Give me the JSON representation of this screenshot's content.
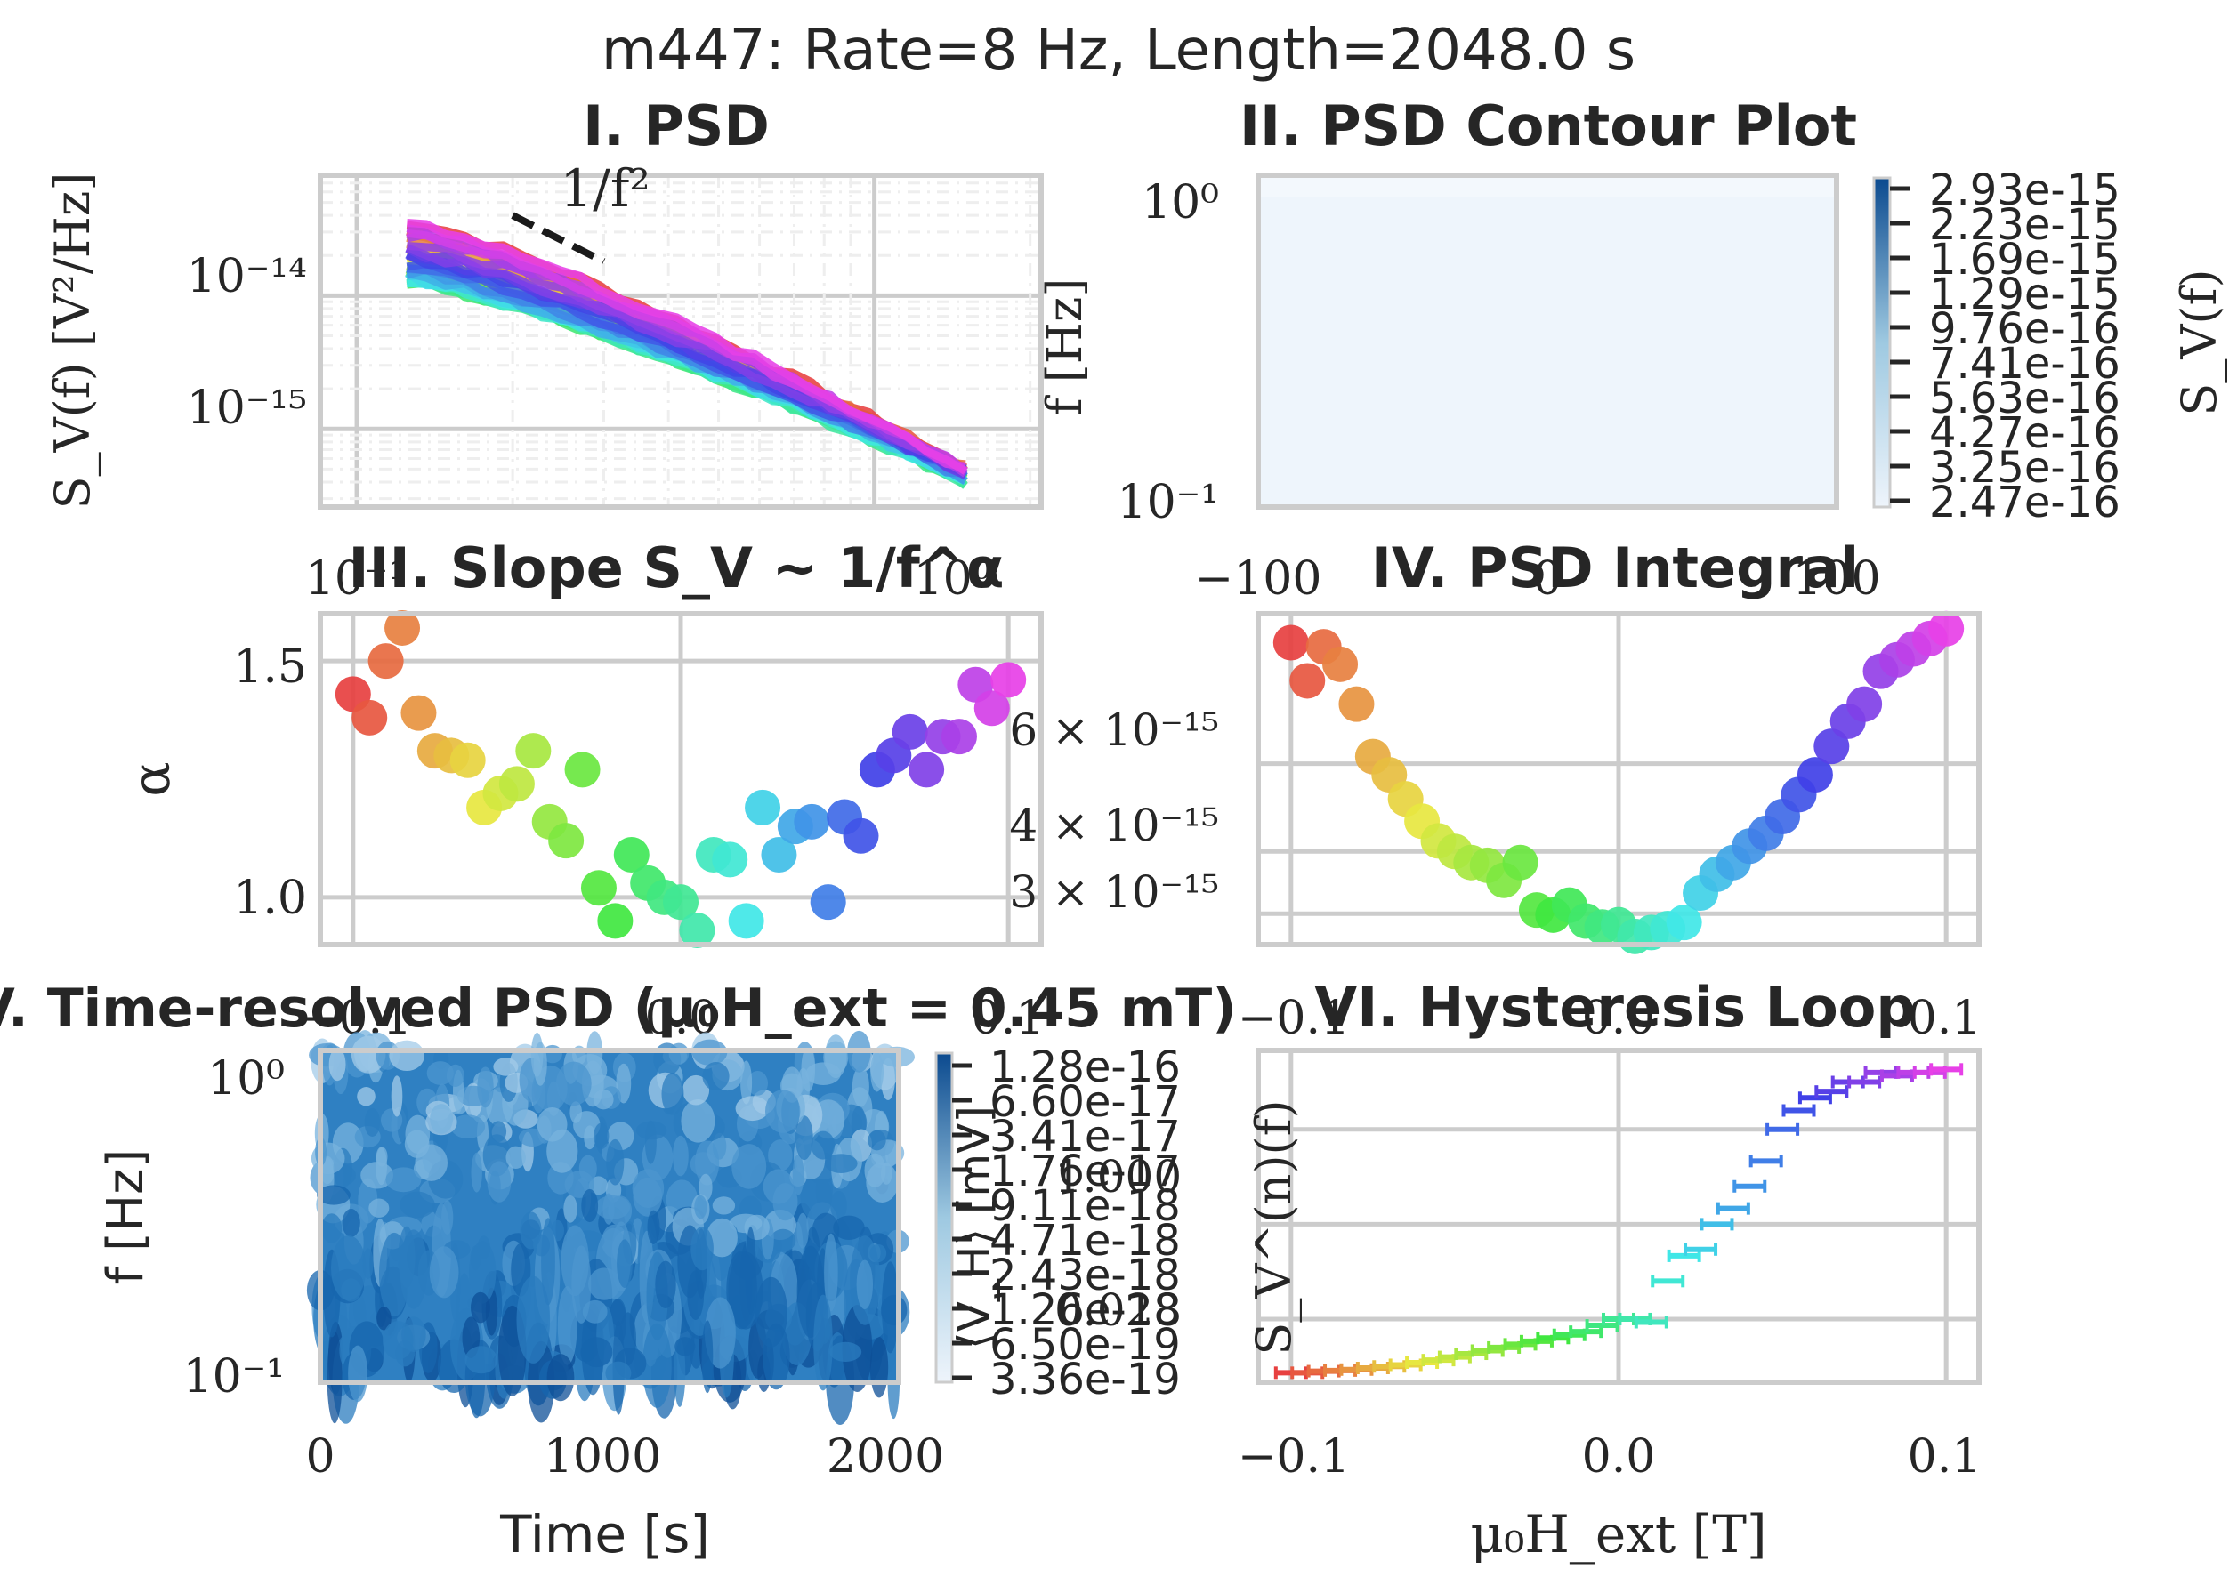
{
  "figure": {
    "suptitle": "m447: Rate=8 Hz, Length=2048.0 s",
    "background": "#ffffff",
    "grid_color": "#cccccc",
    "text_color": "#262626"
  },
  "panels": {
    "p1": {
      "title": "I. PSD",
      "ylabel": "S_V(f) [V²/Hz]",
      "ytick_labels": [
        "10⁻¹⁴",
        "10⁻¹⁵"
      ],
      "xtick_labels": [
        "10⁻¹",
        "10⁰"
      ],
      "annotation": "1/f²"
    },
    "p2": {
      "title": "II. PSD Contour Plot",
      "ylabel": "f [Hz]",
      "ytick_labels": [
        "10⁰",
        "10⁻¹"
      ],
      "xtick_labels": [
        "−100",
        "0",
        "100"
      ],
      "colorbar_label": "S_V(f)",
      "colorbar_ticks": [
        "2.93e-15",
        "2.23e-15",
        "1.69e-15",
        "1.29e-15",
        "9.76e-16",
        "7.41e-16",
        "5.63e-16",
        "4.27e-16",
        "3.25e-16",
        "2.47e-16"
      ]
    },
    "p3": {
      "title": "III. Slope S_V ~ 1/f^α",
      "ylabel": "α",
      "ytick_labels": [
        "1.5",
        "1.0"
      ],
      "xtick_labels": [
        "−0.1",
        "0.0",
        "0.1"
      ]
    },
    "p4": {
      "title": "IV. PSD Integral",
      "ytick_labels": [
        "6 × 10⁻¹⁵",
        "4 × 10⁻¹⁵",
        "3 × 10⁻¹⁵"
      ],
      "xtick_labels": [
        "−0.1",
        "0.0",
        "0.1"
      ]
    },
    "p5": {
      "title": "V. Time-resolved PSD (μ₀H_ext = 0.45 mT)",
      "ylabel": "f [Hz]",
      "xlabel": "Time [s]",
      "ytick_labels": [
        "10⁰",
        "10⁻¹"
      ],
      "xtick_labels": [
        "0",
        "1000",
        "2000"
      ],
      "colorbar_label": "⟨V_H⟩ [mV]",
      "colorbar_ticks": [
        "1.28e-16",
        "6.60e-17",
        "3.41e-17",
        "1.76e-17",
        "9.11e-18",
        "4.71e-18",
        "2.43e-18",
        "1.26e-18",
        "6.50e-19",
        "3.36e-19"
      ],
      "colorbar_overlap_labels": [
        "1.000",
        "0.028"
      ]
    },
    "p6": {
      "title": "VI. Hysteresis Loop",
      "ylabel": "S_V^(n)(f)",
      "xlabel": "μ₀H_ext [T]",
      "xtick_labels": [
        "−0.1",
        "0.0",
        "0.1"
      ]
    }
  },
  "chart_data": [
    {
      "type": "line",
      "title": "I. PSD",
      "xlabel": "",
      "ylabel": "S_V(f) [V²/Hz]",
      "xscale": "log",
      "yscale": "log",
      "xlim": [
        0.085,
        2.1
      ],
      "ylim": [
        2.6e-16,
        8e-14
      ],
      "grid": true,
      "series_count": 40,
      "colormap": "hsv, ordered by field",
      "freq_start": 0.125,
      "freq_stop": 1.5,
      "start_level_range": [
        1e-14,
        4e-14
      ],
      "end_level_range": [
        3.6e-16,
        5.2e-16
      ],
      "reference_line": {
        "label": "1/f²",
        "x": [
          0.2,
          0.3
        ],
        "y": [
          4e-14,
          1.8e-14
        ]
      }
    },
    {
      "type": "heatmap",
      "title": "II. PSD Contour Plot",
      "xlabel": "",
      "ylabel": "f [Hz]",
      "xlim": [
        -100,
        100
      ],
      "yscale": "log",
      "ylim": [
        0.08,
        1.3
      ],
      "colorbar_label": "S_V(f)",
      "levels": [
        2.47e-16,
        3.25e-16,
        4.27e-16,
        5.63e-16,
        7.41e-16,
        9.76e-16,
        1.29e-15,
        1.69e-15,
        2.23e-15,
        2.93e-15
      ],
      "colormap": "Blues",
      "trend": "higher values at low frequency"
    },
    {
      "type": "scatter",
      "title": "III. Slope S_V ~ 1/f^α",
      "xlabel": "",
      "ylabel": "α",
      "xlim": [
        -0.11,
        0.11
      ],
      "ylim": [
        0.9,
        1.6
      ],
      "grid": true,
      "x": [
        -0.1,
        -0.095,
        -0.09,
        -0.085,
        -0.08,
        -0.075,
        -0.07,
        -0.065,
        -0.06,
        -0.055,
        -0.05,
        -0.045,
        -0.04,
        -0.035,
        -0.03,
        -0.025,
        -0.02,
        -0.015,
        -0.01,
        -0.005,
        0.0,
        0.005,
        0.01,
        0.015,
        0.02,
        0.025,
        0.03,
        0.035,
        0.04,
        0.045,
        0.05,
        0.055,
        0.06,
        0.065,
        0.07,
        0.075,
        0.08,
        0.085,
        0.09,
        0.095,
        0.1
      ],
      "y": [
        1.43,
        1.38,
        1.5,
        1.57,
        1.39,
        1.31,
        1.3,
        1.29,
        1.19,
        1.22,
        1.24,
        1.31,
        1.16,
        1.12,
        1.27,
        1.02,
        0.95,
        1.09,
        1.03,
        1.0,
        0.99,
        0.93,
        1.09,
        1.08,
        0.95,
        1.19,
        1.09,
        1.15,
        1.16,
        0.99,
        1.17,
        1.13,
        1.27,
        1.3,
        1.35,
        1.27,
        1.34,
        1.34,
        1.45,
        1.4,
        1.46
      ],
      "colormap": "hsv"
    },
    {
      "type": "scatter",
      "title": "IV. PSD Integral",
      "xlabel": "",
      "ylabel": "",
      "yscale": "log",
      "xlim": [
        -0.11,
        0.11
      ],
      "ylim": [
        2.6e-15,
        1.2e-14
      ],
      "grid": true,
      "x": [
        -0.1,
        -0.095,
        -0.09,
        -0.085,
        -0.08,
        -0.075,
        -0.07,
        -0.065,
        -0.06,
        -0.055,
        -0.05,
        -0.045,
        -0.04,
        -0.035,
        -0.03,
        -0.025,
        -0.02,
        -0.015,
        -0.01,
        -0.005,
        0.0,
        0.005,
        0.01,
        0.015,
        0.02,
        0.025,
        0.03,
        0.035,
        0.04,
        0.045,
        0.05,
        0.055,
        0.06,
        0.065,
        0.07,
        0.075,
        0.08,
        0.085,
        0.09,
        0.095,
        0.1
      ],
      "y": [
        1.05e-14,
        8.8e-15,
        1.03e-14,
        9.5e-15,
        7.9e-15,
        6.2e-15,
        5.7e-15,
        5.1e-15,
        4.6e-15,
        4.2e-15,
        4e-15,
        3.8e-15,
        3.75e-15,
        3.5e-15,
        3.8e-15,
        3.05e-15,
        2.98e-15,
        3.12e-15,
        2.9e-15,
        2.82e-15,
        2.85e-15,
        2.7e-15,
        2.75e-15,
        2.8e-15,
        2.88e-15,
        3.3e-15,
        3.6e-15,
        3.8e-15,
        4.1e-15,
        4.35e-15,
        4.7e-15,
        5.2e-15,
        5.7e-15,
        6.5e-15,
        7.3e-15,
        7.9e-15,
        9.2e-15,
        9.7e-15,
        1.02e-14,
        1.07e-14,
        1.12e-14
      ],
      "colormap": "hsv"
    },
    {
      "type": "heatmap",
      "title": "V. Time-resolved PSD (μ₀H_ext = 0.45 mT)",
      "xlabel": "Time [s]",
      "ylabel": "f [Hz]",
      "xlim": [
        0,
        2048
      ],
      "yscale": "log",
      "ylim": [
        0.08,
        1.3
      ],
      "colorbar_label": "⟨V_H⟩ [mV]",
      "levels": [
        3.36e-19,
        6.5e-19,
        1.26e-18,
        2.43e-18,
        4.71e-18,
        9.11e-18,
        1.76e-17,
        3.41e-17,
        6.6e-17,
        1.28e-16
      ],
      "colormap": "Blues"
    },
    {
      "type": "line",
      "title": "VI. Hysteresis Loop",
      "xlabel": "μ₀H_ext [T]",
      "ylabel": "S_V^(n)(f)",
      "xlim": [
        -0.11,
        0.11
      ],
      "ylim": [
        0.0,
        1.05
      ],
      "grid": true,
      "style": "horizontal error bars",
      "x": [
        -0.1,
        -0.095,
        -0.09,
        -0.085,
        -0.08,
        -0.075,
        -0.07,
        -0.065,
        -0.06,
        -0.055,
        -0.05,
        -0.045,
        -0.04,
        -0.035,
        -0.03,
        -0.025,
        -0.02,
        -0.015,
        -0.01,
        -0.005,
        0.0,
        0.005,
        0.01,
        0.015,
        0.02,
        0.025,
        0.03,
        0.035,
        0.04,
        0.045,
        0.05,
        0.055,
        0.06,
        0.065,
        0.07,
        0.075,
        0.08,
        0.085,
        0.09,
        0.095,
        0.1
      ],
      "y": [
        0.03,
        0.03,
        0.035,
        0.037,
        0.04,
        0.045,
        0.05,
        0.055,
        0.062,
        0.07,
        0.08,
        0.09,
        0.1,
        0.11,
        0.12,
        0.13,
        0.14,
        0.15,
        0.16,
        0.18,
        0.2,
        0.2,
        0.19,
        0.32,
        0.4,
        0.42,
        0.5,
        0.55,
        0.62,
        0.7,
        0.8,
        0.86,
        0.9,
        0.92,
        0.95,
        0.95,
        0.98,
        0.97,
        0.98,
        0.98,
        0.99
      ],
      "colormap": "hsv"
    }
  ]
}
